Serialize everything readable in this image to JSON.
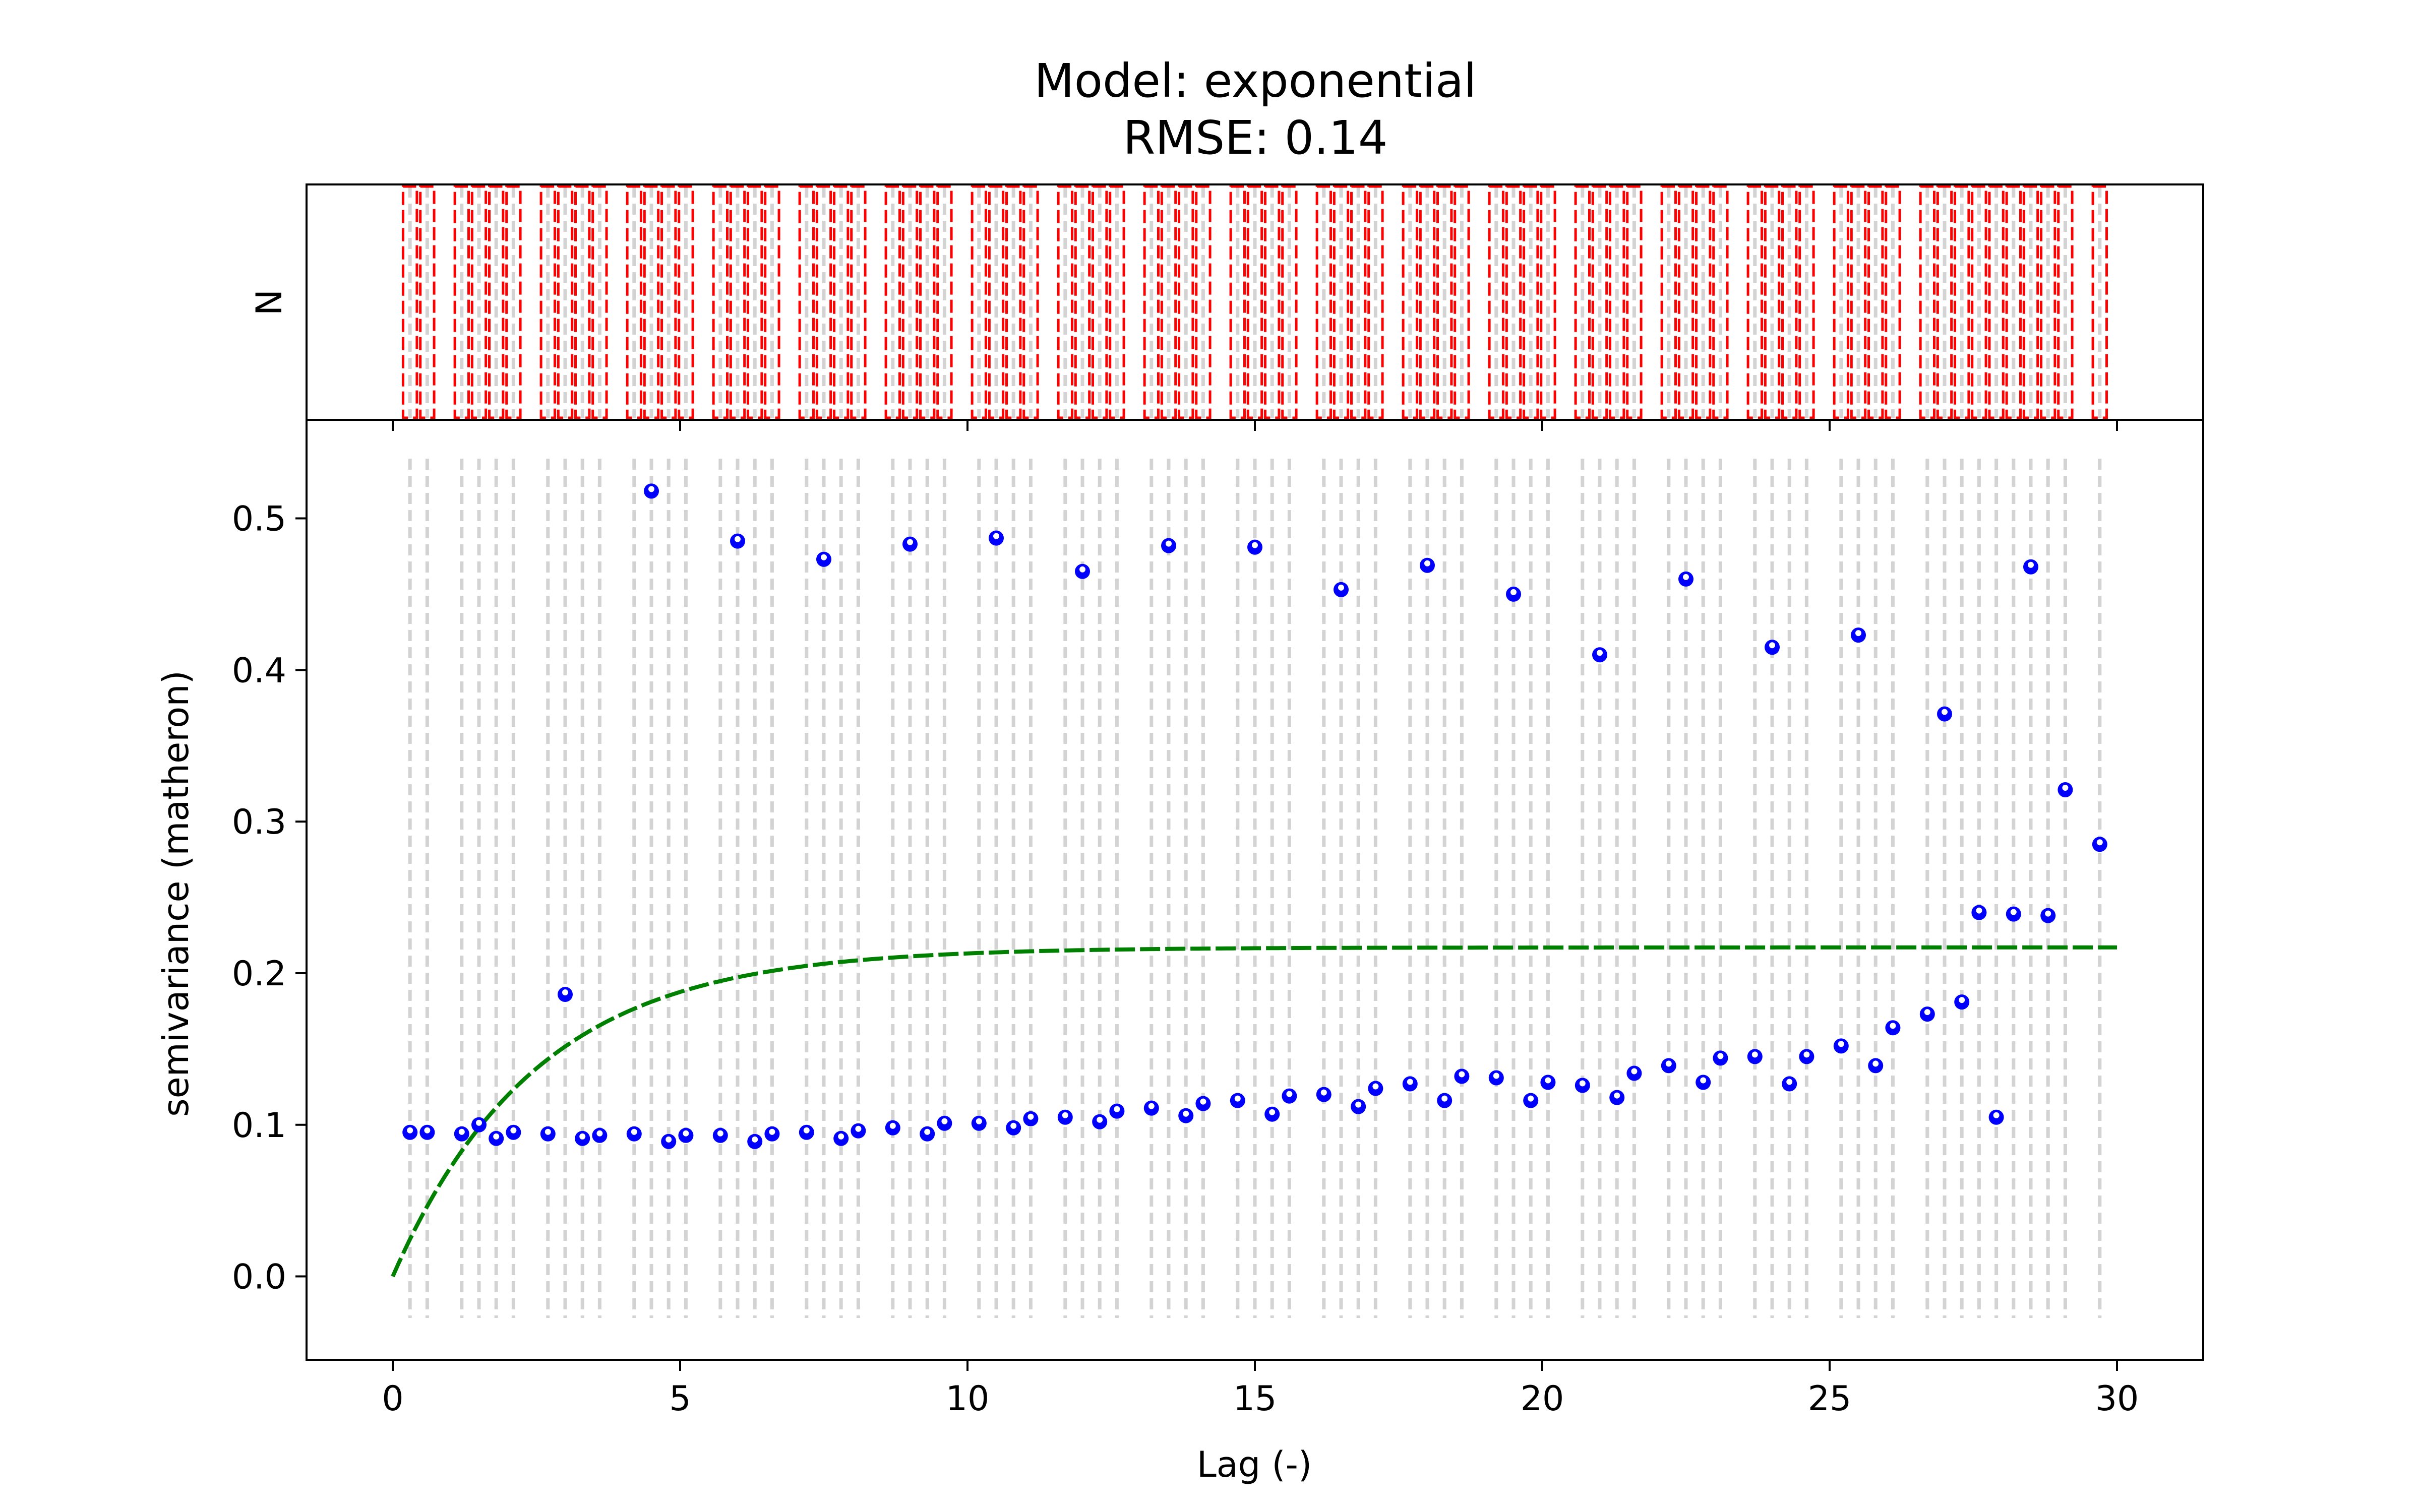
{
  "chart_data": [
    {
      "type": "bar",
      "panel": "histogram",
      "title_lines": [
        "Model: exponential",
        "RMSE: 0.14"
      ],
      "ylabel": "N",
      "xlim": [
        -1.5,
        31.5
      ],
      "bar_color": "#ff0000",
      "bins": [
        0.3,
        0.6,
        1.2,
        1.5,
        1.8,
        2.1,
        2.7,
        3.0,
        3.3,
        3.6,
        4.2,
        4.5,
        4.8,
        5.1,
        5.7,
        6.0,
        6.3,
        6.6,
        7.2,
        7.5,
        7.8,
        8.1,
        8.7,
        9.0,
        9.3,
        9.6,
        10.2,
        10.5,
        10.8,
        11.1,
        11.7,
        12.0,
        12.3,
        12.6,
        13.2,
        13.5,
        13.8,
        14.1,
        14.7,
        15.0,
        15.3,
        15.6,
        16.2,
        16.5,
        16.8,
        17.1,
        17.7,
        18.0,
        18.3,
        18.6,
        19.2,
        19.5,
        19.8,
        20.1,
        20.7,
        21.0,
        21.3,
        21.6,
        22.2,
        22.5,
        22.8,
        23.1,
        23.7,
        24.0,
        24.3,
        24.6,
        25.2,
        25.5,
        25.8,
        26.1,
        26.7,
        27.0,
        27.3,
        27.6,
        27.9,
        28.2,
        28.5,
        28.8,
        29.1,
        29.7
      ]
    },
    {
      "type": "scatter",
      "panel": "variogram",
      "xlabel": "Lag (-)",
      "ylabel": "semivariance (matheron)",
      "xlim": [
        -1.5,
        31.5
      ],
      "ylim": [
        -0.055,
        0.565
      ],
      "xticks": [
        0,
        5,
        10,
        15,
        20,
        25,
        30
      ],
      "yticks": [
        0.0,
        0.1,
        0.2,
        0.3,
        0.4,
        0.5
      ],
      "grid": "dashed vertical lines at bin centers",
      "point_color": "#0000ff",
      "model_color": "#008000",
      "points": {
        "x": [
          0.3,
          0.6,
          1.2,
          1.5,
          1.8,
          2.1,
          2.7,
          3.0,
          3.3,
          3.6,
          4.2,
          4.5,
          4.8,
          5.1,
          5.7,
          6.0,
          6.3,
          6.6,
          7.2,
          7.5,
          7.8,
          8.1,
          8.7,
          9.0,
          9.3,
          9.6,
          10.2,
          10.5,
          10.8,
          11.1,
          11.7,
          12.0,
          12.3,
          12.6,
          13.2,
          13.5,
          13.8,
          14.1,
          14.7,
          15.0,
          15.3,
          15.6,
          16.2,
          16.5,
          16.8,
          17.1,
          17.7,
          18.0,
          18.3,
          18.6,
          19.2,
          19.5,
          19.8,
          20.1,
          20.7,
          21.0,
          21.3,
          21.6,
          22.2,
          22.5,
          22.8,
          23.1,
          23.7,
          24.0,
          24.3,
          24.6,
          25.2,
          25.5,
          25.8,
          26.1,
          26.7,
          27.0,
          27.3,
          27.6,
          27.9,
          28.2,
          28.5,
          28.8,
          29.1,
          29.7
        ],
        "y": [
          0.095,
          0.095,
          0.094,
          0.1,
          0.091,
          0.095,
          0.094,
          0.186,
          0.091,
          0.093,
          0.094,
          0.518,
          0.089,
          0.093,
          0.093,
          0.485,
          0.089,
          0.094,
          0.095,
          0.473,
          0.091,
          0.096,
          0.098,
          0.483,
          0.094,
          0.101,
          0.101,
          0.487,
          0.098,
          0.104,
          0.105,
          0.465,
          0.102,
          0.109,
          0.111,
          0.482,
          0.106,
          0.114,
          0.116,
          0.481,
          0.107,
          0.119,
          0.12,
          0.453,
          0.112,
          0.124,
          0.127,
          0.469,
          0.116,
          0.132,
          0.131,
          0.45,
          0.116,
          0.128,
          0.126,
          0.41,
          0.118,
          0.134,
          0.139,
          0.46,
          0.128,
          0.144,
          0.145,
          0.415,
          0.127,
          0.145,
          0.152,
          0.423,
          0.139,
          0.164,
          0.173,
          0.371,
          0.181,
          0.24,
          0.105,
          0.239,
          0.468,
          0.238,
          0.321,
          0.285
        ]
      },
      "model": {
        "kind": "exponential",
        "nugget": 0.0,
        "sill": 0.217,
        "range": 7.5,
        "x_max": 30.0
      }
    }
  ]
}
